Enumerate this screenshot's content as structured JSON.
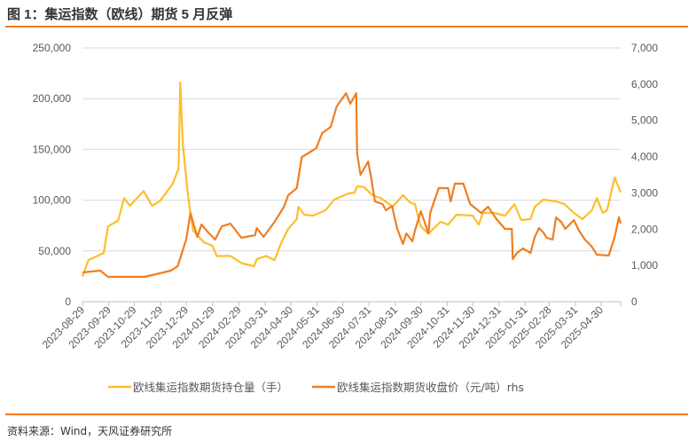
{
  "title": "图 1：集运指数（欧线）期货 5 月反弹",
  "source": "资料来源：Wind，天风证券研究所",
  "colors": {
    "accent": "#F47B20",
    "series_oi": "#FDBE2A",
    "series_price": "#F07E22",
    "grid": "#D9D9D9"
  },
  "chart_data": {
    "type": "line",
    "title": "",
    "xlabel": "",
    "ylabel": "",
    "y2label": "",
    "grid": true,
    "legend_position": "bottom",
    "x_ticks": [
      "2023-08-29",
      "2023-09-29",
      "2023-10-29",
      "2023-11-29",
      "2023-12-29",
      "2024-01-29",
      "2024-02-29",
      "2024-03-31",
      "2024-04-30",
      "2024-05-31",
      "2024-06-30",
      "2024-07-31",
      "2024-08-31",
      "2024-09-30",
      "2024-10-31",
      "2024-11-30",
      "2024-12-31",
      "2025-01-31",
      "2025-02-28",
      "2025-03-31",
      "2025-04-30"
    ],
    "xlim": [
      "2023-08-29",
      "2025-05-23"
    ],
    "ylim": [
      0,
      250000
    ],
    "y_ticks": [
      "0",
      "50,000",
      "100,000",
      "150,000",
      "200,000",
      "250,000"
    ],
    "y2lim": [
      0,
      7000
    ],
    "y2_ticks": [
      "0",
      "1,000",
      "2,000",
      "3,000",
      "4,000",
      "5,000",
      "6,000",
      "7,000"
    ],
    "series": [
      {
        "name": "欧线集运指数期货持仓量（手）",
        "axis": "left",
        "points": [
          [
            "2023-08-29",
            24700
          ],
          [
            "2023-09-05",
            41000
          ],
          [
            "2023-09-23",
            48000
          ],
          [
            "2023-09-28",
            74000
          ],
          [
            "2023-10-10",
            80000
          ],
          [
            "2023-10-17",
            102000
          ],
          [
            "2023-10-24",
            94500
          ],
          [
            "2023-11-09",
            109000
          ],
          [
            "2023-11-19",
            94500
          ],
          [
            "2023-11-28",
            99000
          ],
          [
            "2023-12-13",
            116000
          ],
          [
            "2023-12-20",
            131000
          ],
          [
            "2023-12-22",
            216000
          ],
          [
            "2023-12-25",
            155000
          ],
          [
            "2023-12-31",
            106000
          ],
          [
            "2024-01-03",
            87000
          ],
          [
            "2024-01-06",
            70000
          ],
          [
            "2024-01-19",
            58500
          ],
          [
            "2024-01-29",
            55000
          ],
          [
            "2024-02-03",
            45000
          ],
          [
            "2024-02-19",
            45000
          ],
          [
            "2024-03-04",
            37600
          ],
          [
            "2024-03-18",
            35000
          ],
          [
            "2024-03-21",
            42000
          ],
          [
            "2024-04-01",
            45000
          ],
          [
            "2024-04-11",
            41000
          ],
          [
            "2024-04-19",
            58500
          ],
          [
            "2024-04-27",
            71700
          ],
          [
            "2024-05-07",
            81300
          ],
          [
            "2024-05-09",
            93500
          ],
          [
            "2024-05-16",
            85700
          ],
          [
            "2024-05-26",
            84800
          ],
          [
            "2024-06-10",
            90000
          ],
          [
            "2024-06-20",
            100500
          ],
          [
            "2024-07-07",
            106600
          ],
          [
            "2024-07-14",
            107500
          ],
          [
            "2024-07-17",
            113600
          ],
          [
            "2024-07-25",
            113000
          ],
          [
            "2024-08-04",
            105000
          ],
          [
            "2024-08-14",
            102000
          ],
          [
            "2024-08-28",
            93500
          ],
          [
            "2024-09-09",
            105000
          ],
          [
            "2024-09-17",
            98000
          ],
          [
            "2024-09-23",
            96000
          ],
          [
            "2024-09-30",
            74000
          ],
          [
            "2024-10-09",
            67000
          ],
          [
            "2024-10-23",
            78700
          ],
          [
            "2024-11-01",
            76000
          ],
          [
            "2024-11-11",
            85700
          ],
          [
            "2024-11-30",
            84800
          ],
          [
            "2024-12-07",
            76000
          ],
          [
            "2024-12-12",
            87400
          ],
          [
            "2024-12-25",
            87400
          ],
          [
            "2025-01-07",
            84800
          ],
          [
            "2025-01-18",
            96000
          ],
          [
            "2025-01-26",
            80400
          ],
          [
            "2025-02-06",
            81300
          ],
          [
            "2025-02-11",
            93500
          ],
          [
            "2025-02-21",
            100500
          ],
          [
            "2025-03-08",
            98800
          ],
          [
            "2025-03-18",
            96000
          ],
          [
            "2025-03-29",
            87400
          ],
          [
            "2025-04-08",
            81300
          ],
          [
            "2025-04-19",
            90000
          ],
          [
            "2025-04-25",
            102000
          ],
          [
            "2025-05-02",
            87400
          ],
          [
            "2025-05-07",
            90000
          ],
          [
            "2025-05-16",
            122400
          ],
          [
            "2025-05-23",
            107500
          ]
        ]
      },
      {
        "name": "欧线集运指数期货收盘价（元/吨）rhs",
        "axis": "right",
        "points": [
          [
            "2023-08-29",
            808
          ],
          [
            "2023-09-19",
            857
          ],
          [
            "2023-09-28",
            685
          ],
          [
            "2023-10-17",
            685
          ],
          [
            "2023-11-10",
            685
          ],
          [
            "2023-11-28",
            783
          ],
          [
            "2023-12-11",
            857
          ],
          [
            "2023-12-19",
            980
          ],
          [
            "2023-12-24",
            1346
          ],
          [
            "2023-12-29",
            1713
          ],
          [
            "2024-01-03",
            2448
          ],
          [
            "2024-01-11",
            1787
          ],
          [
            "2024-01-16",
            2129
          ],
          [
            "2024-01-24",
            1909
          ],
          [
            "2024-02-01",
            1713
          ],
          [
            "2024-02-09",
            2080
          ],
          [
            "2024-02-19",
            2154
          ],
          [
            "2024-03-03",
            1762
          ],
          [
            "2024-03-19",
            1836
          ],
          [
            "2024-03-21",
            2031
          ],
          [
            "2024-03-29",
            1787
          ],
          [
            "2024-04-11",
            2203
          ],
          [
            "2024-04-22",
            2619
          ],
          [
            "2024-04-27",
            2937
          ],
          [
            "2024-05-07",
            3133
          ],
          [
            "2024-05-13",
            3990
          ],
          [
            "2024-05-20",
            4087
          ],
          [
            "2024-05-30",
            4234
          ],
          [
            "2024-06-06",
            4650
          ],
          [
            "2024-06-16",
            4822
          ],
          [
            "2024-06-23",
            5385
          ],
          [
            "2024-07-04",
            5752
          ],
          [
            "2024-07-09",
            5458
          ],
          [
            "2024-07-16",
            5752
          ],
          [
            "2024-07-17",
            4087
          ],
          [
            "2024-07-21",
            3500
          ],
          [
            "2024-07-27",
            3745
          ],
          [
            "2024-07-30",
            3867
          ],
          [
            "2024-08-02",
            3500
          ],
          [
            "2024-08-07",
            2766
          ],
          [
            "2024-08-16",
            2692
          ],
          [
            "2024-08-20",
            2521
          ],
          [
            "2024-08-27",
            2643
          ],
          [
            "2024-09-02",
            2031
          ],
          [
            "2024-09-09",
            1591
          ],
          [
            "2024-09-13",
            1885
          ],
          [
            "2024-09-20",
            1664
          ],
          [
            "2024-09-23",
            1958
          ],
          [
            "2024-09-30",
            2496
          ],
          [
            "2024-10-09",
            1885
          ],
          [
            "2024-10-11",
            2448
          ],
          [
            "2024-10-21",
            3133
          ],
          [
            "2024-11-01",
            3133
          ],
          [
            "2024-11-04",
            2766
          ],
          [
            "2024-11-09",
            3255
          ],
          [
            "2024-11-19",
            3255
          ],
          [
            "2024-11-27",
            2692
          ],
          [
            "2024-12-10",
            2448
          ],
          [
            "2024-12-18",
            2619
          ],
          [
            "2024-12-28",
            2276
          ],
          [
            "2025-01-07",
            2007
          ],
          [
            "2025-01-15",
            2007
          ],
          [
            "2025-01-16",
            1175
          ],
          [
            "2025-01-21",
            1346
          ],
          [
            "2025-01-28",
            1469
          ],
          [
            "2025-02-06",
            1346
          ],
          [
            "2025-02-11",
            1787
          ],
          [
            "2025-02-16",
            2031
          ],
          [
            "2025-02-21",
            1909
          ],
          [
            "2025-02-25",
            1762
          ],
          [
            "2025-03-04",
            1713
          ],
          [
            "2025-03-08",
            2325
          ],
          [
            "2025-03-14",
            2203
          ],
          [
            "2025-03-19",
            2007
          ],
          [
            "2025-03-29",
            2252
          ],
          [
            "2025-04-04",
            1958
          ],
          [
            "2025-04-11",
            1713
          ],
          [
            "2025-04-19",
            1517
          ],
          [
            "2025-04-25",
            1297
          ],
          [
            "2025-05-09",
            1273
          ],
          [
            "2025-05-16",
            1787
          ],
          [
            "2025-05-21",
            2325
          ],
          [
            "2025-05-23",
            2154
          ]
        ]
      }
    ]
  }
}
